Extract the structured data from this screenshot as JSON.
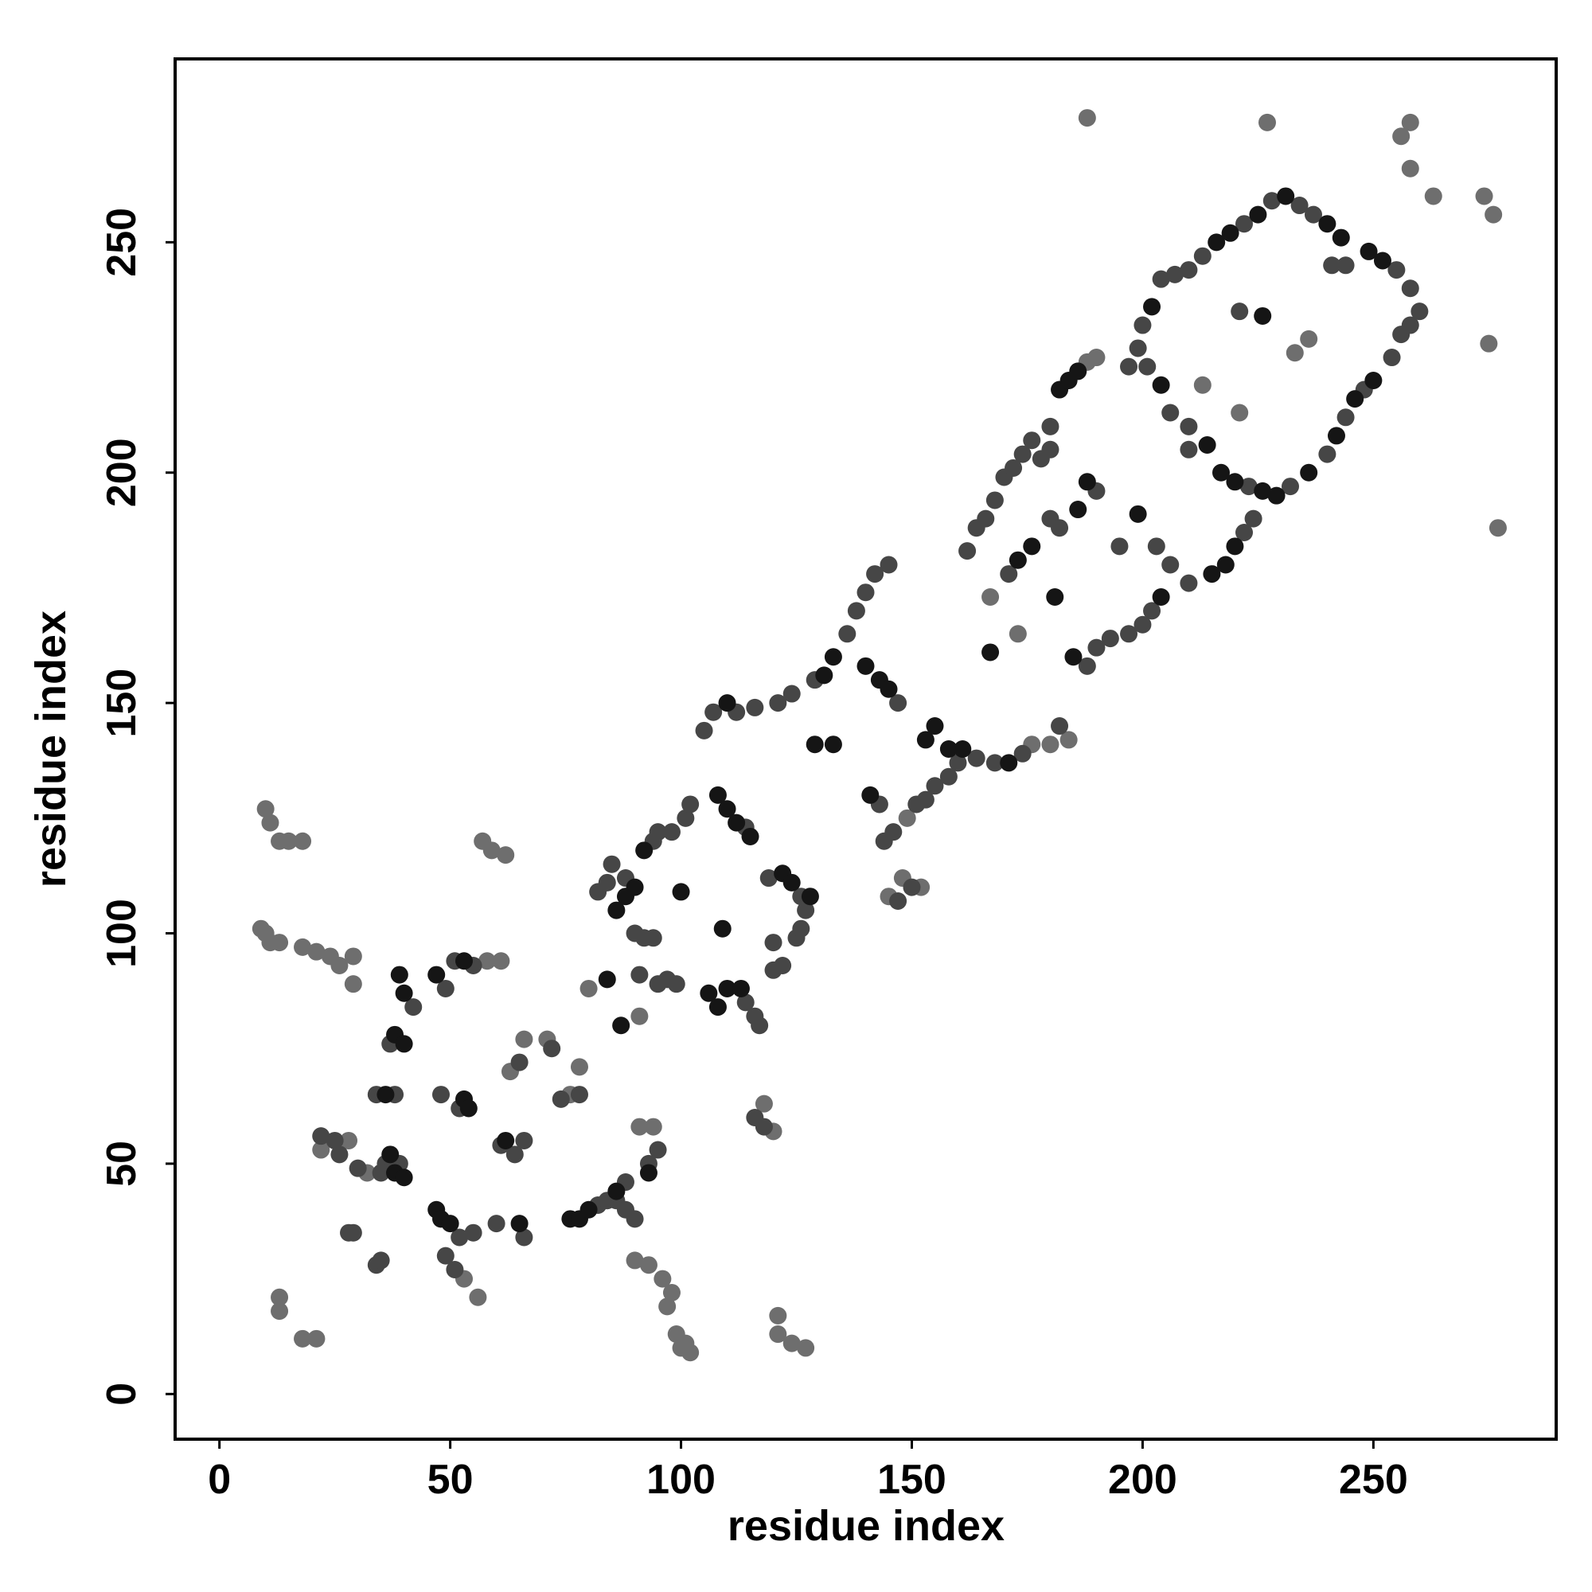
{
  "chart_data": {
    "type": "scatter",
    "x_label": "residue index",
    "y_label": "residue index",
    "xlim": [
      -9.6,
      289.6
    ],
    "ylim": [
      -9.8,
      289.8
    ],
    "xticks": [
      0,
      50,
      100,
      150,
      200,
      250
    ],
    "yticks": [
      0,
      50,
      100,
      150,
      200,
      250
    ],
    "series": [
      {
        "color": "#6e6e6e",
        "x": [
          9,
          10,
          11,
          13,
          18,
          21,
          24,
          26,
          29,
          29,
          10,
          11,
          13,
          15,
          18,
          57,
          59,
          62,
          58,
          61,
          13,
          13,
          18,
          21,
          90,
          93,
          96,
          98,
          97,
          99,
          101,
          102,
          100,
          121,
          121,
          124,
          127,
          63,
          66,
          71,
          76,
          78,
          118,
          120,
          188,
          227,
          258,
          256,
          258,
          263,
          274,
          276,
          275,
          277,
          22,
          28,
          32,
          53,
          56,
          94,
          91,
          148,
          152,
          145,
          184,
          180,
          176,
          167,
          173,
          190,
          188,
          233,
          236,
          213,
          221,
          149,
          80,
          91
        ],
        "values": [
          101,
          100,
          98,
          98,
          97,
          96,
          95,
          93,
          95,
          89,
          127,
          124,
          120,
          120,
          120,
          120,
          118,
          117,
          94,
          94,
          21,
          18,
          12,
          12,
          29,
          28,
          25,
          22,
          19,
          13,
          11,
          9,
          10,
          17,
          13,
          11,
          10,
          70,
          77,
          77,
          65,
          71,
          63,
          57,
          277,
          276,
          276,
          273,
          266,
          260,
          260,
          256,
          228,
          188,
          53,
          55,
          48,
          25,
          21,
          58,
          58,
          112,
          110,
          108,
          142,
          141,
          141,
          173,
          165,
          225,
          224,
          226,
          229,
          219,
          213,
          125,
          88,
          82
        ]
      },
      {
        "color": "#464646",
        "x": [
          42,
          37,
          49,
          55,
          51,
          34,
          38,
          48,
          52,
          36,
          35,
          39,
          52,
          49,
          51,
          55,
          28,
          29,
          34,
          35,
          22,
          25,
          26,
          30,
          61,
          64,
          66,
          60,
          66,
          82,
          84,
          88,
          86,
          88,
          90,
          93,
          95,
          65,
          72,
          74,
          78,
          82,
          84,
          88,
          85,
          94,
          95,
          90,
          92,
          94,
          91,
          95,
          97,
          99,
          98,
          101,
          102,
          114,
          114,
          117,
          116,
          120,
          122,
          125,
          126,
          127,
          126,
          119,
          120,
          105,
          107,
          112,
          116,
          121,
          124,
          116,
          118,
          129,
          136,
          138,
          140,
          142,
          145,
          147,
          143,
          147,
          150,
          144,
          146,
          151,
          153,
          155,
          158,
          160,
          164,
          168,
          174,
          182,
          162,
          164,
          166,
          168,
          170,
          172,
          174,
          176,
          178,
          180,
          171,
          180,
          182,
          190,
          188,
          190,
          193,
          197,
          200,
          202,
          206,
          203,
          195,
          180,
          197,
          199,
          200,
          204,
          207,
          210,
          213,
          222,
          228,
          234,
          237,
          201,
          206,
          210,
          210,
          223,
          232,
          240,
          244,
          248,
          254,
          256,
          258,
          260,
          258,
          255,
          210,
          222,
          224,
          221,
          241,
          244
        ],
        "values": [
          84,
          76,
          88,
          93,
          94,
          65,
          65,
          65,
          62,
          50,
          48,
          50,
          34,
          30,
          27,
          35,
          35,
          35,
          28,
          29,
          56,
          55,
          52,
          49,
          54,
          52,
          55,
          37,
          34,
          41,
          42,
          46,
          42,
          40,
          38,
          50,
          53,
          72,
          75,
          64,
          65,
          109,
          111,
          112,
          115,
          120,
          122,
          100,
          99,
          99,
          91,
          89,
          90,
          89,
          122,
          125,
          128,
          123,
          85,
          80,
          82,
          92,
          93,
          99,
          101,
          105,
          108,
          112,
          98,
          144,
          148,
          148,
          149,
          150,
          152,
          60,
          58,
          155,
          165,
          170,
          174,
          178,
          180,
          150,
          128,
          107,
          110,
          120,
          122,
          128,
          129,
          132,
          134,
          137,
          138,
          137,
          139,
          145,
          183,
          188,
          190,
          194,
          199,
          201,
          204,
          207,
          203,
          205,
          178,
          190,
          188,
          196,
          158,
          162,
          164,
          165,
          167,
          170,
          180,
          184,
          184,
          210,
          223,
          227,
          232,
          242,
          243,
          244,
          247,
          254,
          259,
          258,
          256,
          223,
          213,
          210,
          205,
          197,
          197,
          204,
          212,
          218,
          225,
          230,
          232,
          235,
          240,
          244,
          176,
          187,
          190,
          235,
          245,
          245
        ]
      },
      {
        "color": "#151515",
        "x": [
          39,
          40,
          38,
          40,
          47,
          53,
          36,
          53,
          54,
          38,
          40,
          37,
          47,
          48,
          50,
          62,
          65,
          76,
          78,
          80,
          86,
          93,
          84,
          87,
          86,
          88,
          90,
          92,
          100,
          109,
          108,
          110,
          112,
          115,
          106,
          108,
          110,
          113,
          122,
          124,
          128,
          110,
          131,
          133,
          140,
          143,
          145,
          141,
          129,
          133,
          153,
          155,
          158,
          161,
          171,
          173,
          176,
          188,
          186,
          167,
          181,
          185,
          199,
          204,
          182,
          184,
          186,
          202,
          216,
          219,
          225,
          231,
          240,
          243,
          204,
          214,
          217,
          220,
          226,
          229,
          236,
          242,
          246,
          250,
          252,
          249,
          215,
          218,
          220,
          226
        ],
        "values": [
          91,
          87,
          78,
          76,
          91,
          94,
          65,
          64,
          62,
          48,
          47,
          52,
          40,
          38,
          37,
          55,
          37,
          38,
          38,
          40,
          44,
          48,
          90,
          80,
          105,
          108,
          110,
          118,
          109,
          101,
          130,
          127,
          124,
          121,
          87,
          84,
          88,
          88,
          113,
          111,
          108,
          150,
          156,
          160,
          158,
          155,
          153,
          130,
          141,
          141,
          142,
          145,
          140,
          140,
          137,
          181,
          184,
          198,
          192,
          161,
          173,
          160,
          191,
          173,
          218,
          220,
          222,
          236,
          250,
          252,
          256,
          260,
          254,
          251,
          219,
          206,
          200,
          198,
          196,
          195,
          200,
          208,
          216,
          220,
          246,
          248,
          178,
          180,
          184,
          234
        ]
      }
    ]
  }
}
